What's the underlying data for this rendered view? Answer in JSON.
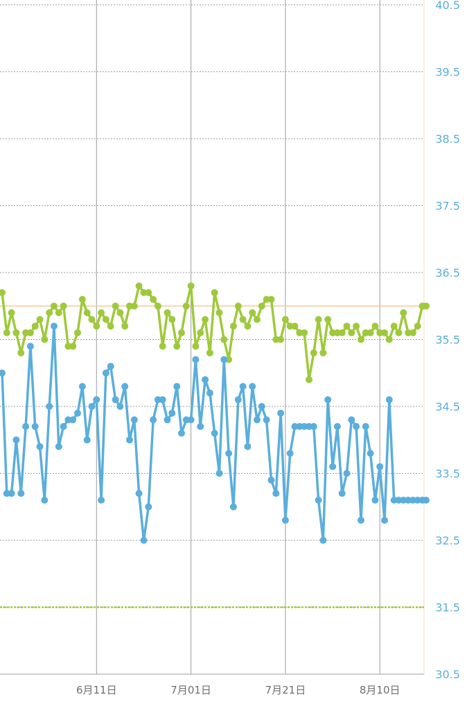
{
  "chart_data": {
    "type": "line",
    "ylim": [
      30.5,
      40.5
    ],
    "y_ticks": [
      "30.5",
      "31.5",
      "32.5",
      "33.5",
      "34.5",
      "35.5",
      "36.5",
      "37.5",
      "38.5",
      "39.5",
      "40.5"
    ],
    "x_ticks": [
      {
        "label": "6月11日",
        "x": 20
      },
      {
        "label": "7月01日",
        "x": 40
      },
      {
        "label": "7月21日",
        "x": 60
      },
      {
        "label": "8月10日",
        "x": 80
      }
    ],
    "xlim": [
      0,
      89.8
    ],
    "reference_lines": [
      {
        "value": 36.0,
        "color": "#f7c8a0",
        "style": "solid"
      },
      {
        "value": 31.5,
        "color": "#9fc93c",
        "style": "dotted"
      }
    ],
    "series": [
      {
        "color": "#9fc93c",
        "x": [
          0,
          1,
          2,
          3,
          4,
          5,
          6,
          7,
          8,
          9,
          10,
          11,
          12,
          13,
          14,
          15,
          16,
          17,
          18,
          19,
          20,
          21,
          22,
          23,
          24,
          25,
          26,
          27,
          28,
          29,
          30,
          31,
          32,
          33,
          34,
          35,
          36,
          37,
          38,
          39,
          40,
          41,
          42,
          43,
          44,
          45,
          46,
          47,
          48,
          49,
          50,
          51,
          52,
          53,
          54,
          55,
          56,
          57,
          58,
          59,
          60,
          61,
          62,
          63,
          64,
          65,
          66,
          67,
          68,
          69,
          70,
          71,
          72,
          73,
          74,
          75,
          76,
          77,
          78,
          79,
          80,
          81,
          82,
          83,
          84,
          85,
          86,
          87,
          88,
          89,
          89.8
        ],
        "values": [
          36.2,
          35.6,
          35.9,
          35.6,
          35.3,
          35.6,
          35.6,
          35.7,
          35.8,
          35.5,
          35.9,
          36.0,
          35.9,
          36.0,
          35.4,
          35.4,
          35.6,
          36.1,
          35.9,
          35.8,
          35.7,
          35.9,
          35.8,
          35.7,
          36.0,
          35.9,
          35.7,
          36.0,
          36.0,
          36.3,
          36.2,
          36.2,
          36.1,
          36.0,
          35.4,
          35.9,
          35.8,
          35.4,
          35.6,
          36.0,
          36.3,
          35.4,
          35.6,
          35.8,
          35.3,
          36.2,
          35.9,
          35.5,
          35.2,
          35.7,
          36.0,
          35.8,
          35.7,
          35.9,
          35.8,
          36.0,
          36.1,
          36.1,
          35.5,
          35.5,
          35.8,
          35.7,
          35.7,
          35.6,
          35.6,
          34.9,
          35.3,
          35.8,
          35.3,
          35.8,
          35.6,
          35.6,
          35.6,
          35.7,
          35.6,
          35.7,
          35.5,
          35.6,
          35.6,
          35.7,
          35.6,
          35.6,
          35.5,
          35.7,
          35.6,
          35.9,
          35.6,
          35.6,
          35.7,
          36.0,
          36.0
        ]
      },
      {
        "color": "#5aaedc",
        "x": [
          0,
          1,
          2,
          3,
          4,
          5,
          6,
          7,
          8,
          9,
          10,
          11,
          12,
          13,
          14,
          15,
          16,
          17,
          18,
          19,
          20,
          21,
          22,
          23,
          24,
          25,
          26,
          27,
          28,
          29,
          30,
          31,
          32,
          33,
          34,
          35,
          36,
          37,
          38,
          39,
          40,
          41,
          42,
          43,
          44,
          45,
          46,
          47,
          48,
          49,
          50,
          51,
          52,
          53,
          54,
          55,
          56,
          57,
          58,
          59,
          60,
          61,
          62,
          63,
          64,
          65,
          66,
          67,
          68,
          69,
          70,
          71,
          72,
          73,
          74,
          75,
          76,
          77,
          78,
          79,
          80,
          81,
          82,
          83,
          84,
          85,
          86,
          87,
          88,
          89,
          89.8
        ],
        "values": [
          35.0,
          33.2,
          33.2,
          34.0,
          33.2,
          34.2,
          35.4,
          34.2,
          33.9,
          33.1,
          34.5,
          35.7,
          33.9,
          34.2,
          34.3,
          34.3,
          34.4,
          34.8,
          34.0,
          34.5,
          34.6,
          33.1,
          35.0,
          35.1,
          34.6,
          34.5,
          34.8,
          34.0,
          34.3,
          33.2,
          32.5,
          33.0,
          34.3,
          34.6,
          34.6,
          34.3,
          34.4,
          34.8,
          34.1,
          34.3,
          34.3,
          35.2,
          34.2,
          34.9,
          34.7,
          34.1,
          33.5,
          35.2,
          33.8,
          33.0,
          34.6,
          34.8,
          33.9,
          34.8,
          34.3,
          34.5,
          34.3,
          33.4,
          33.2,
          34.4,
          32.8,
          33.8,
          34.2,
          34.2,
          34.2,
          34.2,
          34.2,
          33.1,
          32.5,
          34.6,
          33.6,
          34.2,
          33.2,
          33.5,
          34.3,
          34.2,
          32.8,
          34.2,
          33.8,
          33.1,
          33.6,
          32.8,
          34.6,
          33.1,
          33.1,
          33.1,
          33.1,
          33.1,
          33.1,
          33.1,
          33.1
        ]
      }
    ],
    "grid": true
  },
  "colors": {
    "axis_label": "#5aaedc",
    "grid_dotted": "#9a9a9a",
    "grid_vertical": "#9c9c9c",
    "right_axis": "#f1dcc2"
  }
}
